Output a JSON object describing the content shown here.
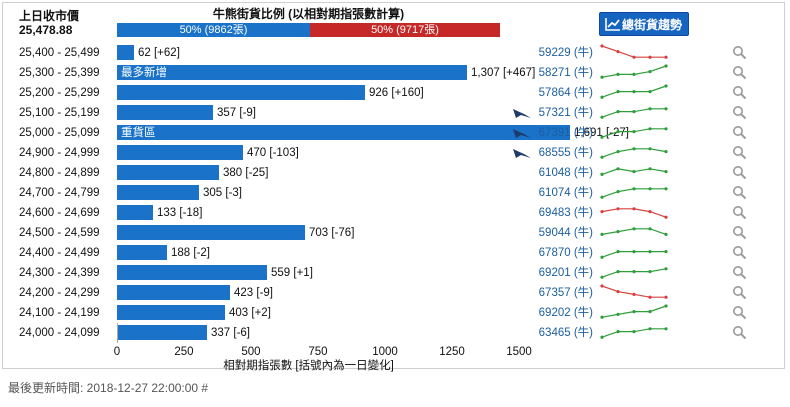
{
  "header": {
    "prev_close_label": "上日收市價",
    "prev_close_value": "25,478.88",
    "ratio_title": "牛熊街貨比例 (以相對期指張數計算)",
    "bull_text": "50% (9862張)",
    "bear_text": "50% (9717張)",
    "bull_share": 0.5036,
    "trend_button": "總街貨趨勢"
  },
  "colors": {
    "bar": "#1a73c9",
    "bull": "#1a73c9",
    "bear": "#c62828",
    "spark_up": "#2e9e3a",
    "spark_down": "#d84040",
    "code_link": "#1b5e9e"
  },
  "chart_data": {
    "type": "bar",
    "orientation": "horizontal",
    "xlim": [
      0,
      1500
    ],
    "xticks": [
      "0",
      "250",
      "500",
      "750",
      "1000",
      "1250",
      "1500"
    ],
    "xlabel": "相對期指張數 [括號內為一日變化]",
    "rows": [
      {
        "range": "25,400 - 25,499",
        "value": 62,
        "label": "62 [+62]",
        "tag": "",
        "code": "59229 (牛)",
        "logo": false,
        "trend": "down",
        "spark": [
          5,
          3,
          1,
          1,
          1
        ]
      },
      {
        "range": "25,300 - 25,399",
        "value": 1307,
        "label": "1,307 [+467]",
        "tag": "最多新增",
        "code": "58271 (牛)",
        "logo": false,
        "trend": "up",
        "spark": [
          1,
          2,
          2,
          3,
          5
        ]
      },
      {
        "range": "25,200 - 25,299",
        "value": 926,
        "label": "926 [+160]",
        "tag": "",
        "code": "57864 (牛)",
        "logo": false,
        "trend": "up",
        "spark": [
          1,
          3,
          3,
          3,
          5
        ]
      },
      {
        "range": "25,100 - 25,199",
        "value": 357,
        "label": "357 [-9]",
        "tag": "",
        "code": "57321 (牛)",
        "logo": true,
        "trend": "up",
        "spark": [
          1,
          3,
          3,
          4,
          4
        ]
      },
      {
        "range": "25,000 - 25,099",
        "value": 1691,
        "label": "1,691 [-27]",
        "tag": "重貨區",
        "code": "67391 (牛)",
        "logo": true,
        "trend": "up",
        "spark": [
          1,
          3,
          3,
          4,
          4
        ]
      },
      {
        "range": "24,900 - 24,999",
        "value": 470,
        "label": "470 [-103]",
        "tag": "",
        "code": "68555 (牛)",
        "logo": true,
        "trend": "up",
        "spark": [
          1,
          3,
          4,
          4,
          3
        ]
      },
      {
        "range": "24,800 - 24,899",
        "value": 380,
        "label": "380 [-25]",
        "tag": "",
        "code": "61048 (牛)",
        "logo": false,
        "trend": "up",
        "spark": [
          2,
          4,
          3,
          4,
          3
        ]
      },
      {
        "range": "24,700 - 24,799",
        "value": 305,
        "label": "305 [-3]",
        "tag": "",
        "code": "61074 (牛)",
        "logo": false,
        "trend": "up",
        "spark": [
          1,
          3,
          4,
          4,
          4
        ]
      },
      {
        "range": "24,600 - 24,699",
        "value": 133,
        "label": "133 [-18]",
        "tag": "",
        "code": "69483 (牛)",
        "logo": false,
        "trend": "down",
        "spark": [
          3,
          4,
          4,
          3,
          1
        ]
      },
      {
        "range": "24,500 - 24,599",
        "value": 703,
        "label": "703 [-76]",
        "tag": "",
        "code": "59044 (牛)",
        "logo": false,
        "trend": "up",
        "spark": [
          2,
          3,
          4,
          4,
          2
        ]
      },
      {
        "range": "24,400 - 24,499",
        "value": 188,
        "label": "188 [-2]",
        "tag": "",
        "code": "67870 (牛)",
        "logo": false,
        "trend": "up",
        "spark": [
          1,
          3,
          3,
          3,
          3
        ]
      },
      {
        "range": "24,300 - 24,399",
        "value": 559,
        "label": "559 [+1]",
        "tag": "",
        "code": "69201 (牛)",
        "logo": false,
        "trend": "up",
        "spark": [
          1,
          3,
          3,
          3,
          4
        ]
      },
      {
        "range": "24,200 - 24,299",
        "value": 423,
        "label": "423 [-9]",
        "tag": "",
        "code": "67357 (牛)",
        "logo": false,
        "trend": "down",
        "spark": [
          5,
          3,
          2,
          1,
          1
        ]
      },
      {
        "range": "24,100 - 24,199",
        "value": 403,
        "label": "403 [+2]",
        "tag": "",
        "code": "69202 (牛)",
        "logo": false,
        "trend": "up",
        "spark": [
          1,
          2,
          3,
          3,
          5
        ]
      },
      {
        "range": "24,000 - 24,099",
        "value": 337,
        "label": "337 [-6]",
        "tag": "",
        "code": "63465 (牛)",
        "logo": false,
        "trend": "up",
        "spark": [
          1,
          3,
          3,
          4,
          4
        ]
      }
    ]
  },
  "icons": {
    "trend_button_icon": "line-chart-icon",
    "row_search_icon": "magnifier-icon",
    "row_logo_icon": "issuer-logo-icon"
  },
  "footer": {
    "last_updated": "最後更新時間: 2018-12-27 22:00:00 #"
  }
}
